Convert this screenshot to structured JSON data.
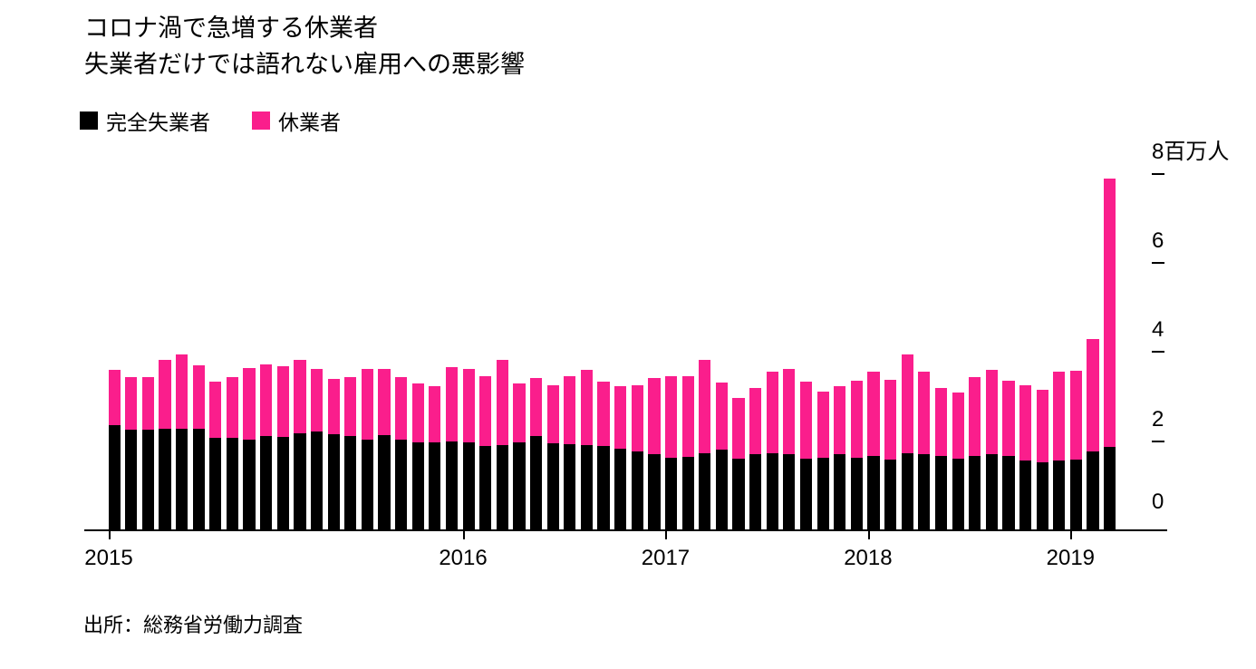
{
  "title": "コロナ渦で急増する休業者",
  "subtitle": "失業者だけでは語れない雇用への悪影響",
  "legend": [
    {
      "label": "完全失業者",
      "color": "#000000"
    },
    {
      "label": "休業者",
      "color": "#fa1e8c"
    }
  ],
  "source": "出所：総務省労働力調査",
  "colors": {
    "unemployed": "#000000",
    "on_leave": "#fa1e8c",
    "axis": "#000000",
    "background": "#ffffff"
  },
  "chart_data": {
    "type": "bar",
    "stacked": true,
    "title": "コロナ渦で急増する休業者",
    "subtitle": "失業者だけでは語れない雇用への悪影響",
    "unit": "百万人",
    "legend_position": "top-left",
    "grid": false,
    "y_axis": {
      "side": "right",
      "range": [
        0,
        8
      ],
      "ticks": [
        {
          "value": 8,
          "label": "8百万人",
          "dash": true
        },
        {
          "value": 6,
          "label": "6",
          "dash": true
        },
        {
          "value": 4,
          "label": "4",
          "dash": true
        },
        {
          "value": 2,
          "label": "2",
          "dash": true
        },
        {
          "value": 0,
          "label": "0",
          "dash": false
        }
      ]
    },
    "x_axis": {
      "year_labels": [
        {
          "label": "2015",
          "bar_index": 1
        },
        {
          "label": "2016",
          "bar_index": 22
        },
        {
          "label": "2017",
          "bar_index": 34
        },
        {
          "label": "2018",
          "bar_index": 46
        },
        {
          "label": "2019",
          "bar_index": 58
        }
      ]
    },
    "series": [
      {
        "name": "完全失業者",
        "color": "#000000",
        "values": [
          2.37,
          2.26,
          2.26,
          2.27,
          2.27,
          2.28,
          2.08,
          2.07,
          2.03,
          2.12,
          2.1,
          2.17,
          2.22,
          2.15,
          2.12,
          2.03,
          2.14,
          2.03,
          1.97,
          1.97,
          1.99,
          1.97,
          1.9,
          1.92,
          1.98,
          2.12,
          1.95,
          1.94,
          1.92,
          1.9,
          1.84,
          1.77,
          1.71,
          1.63,
          1.64,
          1.73,
          1.81,
          1.6,
          1.71,
          1.73,
          1.7,
          1.61,
          1.63,
          1.7,
          1.63,
          1.66,
          1.58,
          1.73,
          1.7,
          1.66,
          1.61,
          1.67,
          1.7,
          1.66,
          1.57,
          1.53,
          1.57,
          1.58,
          1.77,
          1.88
        ]
      },
      {
        "name": "休業者",
        "color": "#fa1e8c",
        "values": [
          1.23,
          1.18,
          1.18,
          1.56,
          1.68,
          1.42,
          1.26,
          1.37,
          1.61,
          1.6,
          1.58,
          1.66,
          1.41,
          1.25,
          1.32,
          1.6,
          1.49,
          1.41,
          1.33,
          1.26,
          1.67,
          1.66,
          1.55,
          1.91,
          1.32,
          1.29,
          1.31,
          1.51,
          1.69,
          1.43,
          1.4,
          1.49,
          1.71,
          1.82,
          1.81,
          2.1,
          1.51,
          1.37,
          1.48,
          1.83,
          1.93,
          1.73,
          1.49,
          1.54,
          1.73,
          1.91,
          1.79,
          2.22,
          1.87,
          1.53,
          1.48,
          1.77,
          1.9,
          1.69,
          1.68,
          1.62,
          1.99,
          2.0,
          2.52,
          6.01
        ]
      }
    ]
  }
}
